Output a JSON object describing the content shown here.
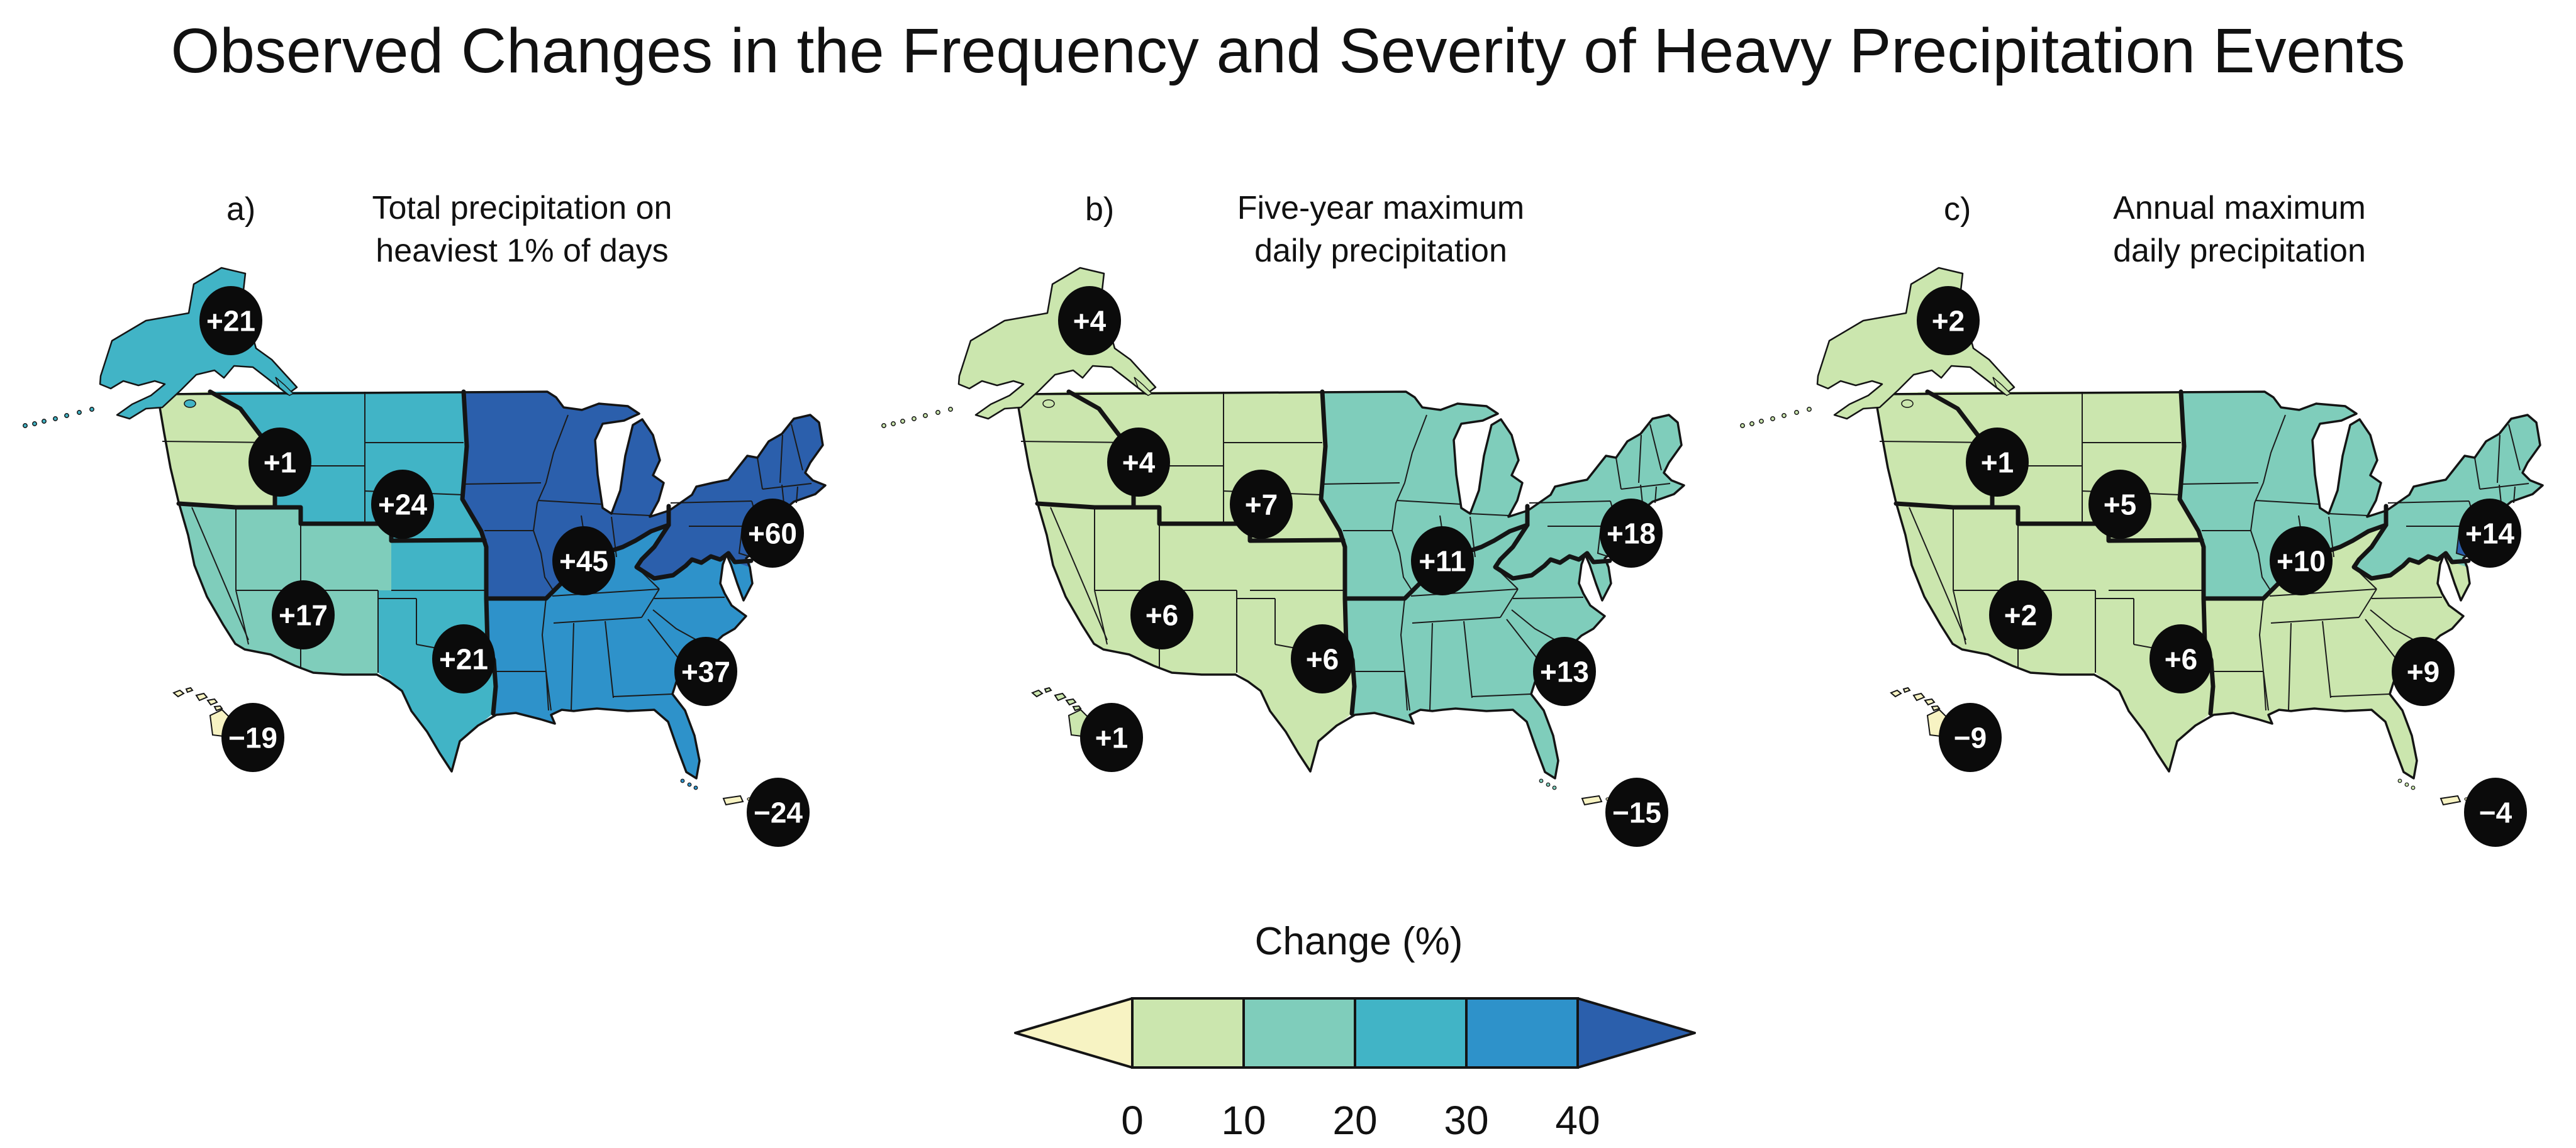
{
  "figure_title": "Observed Changes in the Frequency and Severity of Heavy Precipitation Events",
  "panels": [
    {
      "tag": "a)",
      "title_lines": [
        "Total precipitation on",
        "heaviest 1% of days"
      ],
      "regions": {
        "alaska": {
          "value": "+21",
          "color": "#41B4C6"
        },
        "northwest": {
          "value": "+1",
          "color": "#CBE6AE"
        },
        "northern_great_plains": {
          "value": "+24",
          "color": "#41B4C6"
        },
        "southwest": {
          "value": "+17",
          "color": "#7FCDBB"
        },
        "southern_great_plains": {
          "value": "+21",
          "color": "#41B4C6"
        },
        "midwest": {
          "value": "+45",
          "color": "#2B5FAC"
        },
        "southeast": {
          "value": "+37",
          "color": "#2E92CA"
        },
        "northeast": {
          "value": "+60",
          "color": "#2B5FAC"
        },
        "hawaii": {
          "value": "−19",
          "color": "#F7F3C3"
        },
        "caribbean": {
          "value": "−24",
          "color": "#F7F3C3"
        }
      }
    },
    {
      "tag": "b)",
      "title_lines": [
        "Five-year maximum",
        "daily precipitation"
      ],
      "regions": {
        "alaska": {
          "value": "+4",
          "color": "#CBE6AE"
        },
        "northwest": {
          "value": "+4",
          "color": "#CBE6AE"
        },
        "northern_great_plains": {
          "value": "+7",
          "color": "#CBE6AE"
        },
        "southwest": {
          "value": "+6",
          "color": "#CBE6AE"
        },
        "southern_great_plains": {
          "value": "+6",
          "color": "#CBE6AE"
        },
        "midwest": {
          "value": "+11",
          "color": "#7FCDBB"
        },
        "southeast": {
          "value": "+13",
          "color": "#7FCDBB"
        },
        "northeast": {
          "value": "+18",
          "color": "#7FCDBB"
        },
        "hawaii": {
          "value": "+1",
          "color": "#CBE6AE"
        },
        "caribbean": {
          "value": "−15",
          "color": "#F7F3C3"
        }
      }
    },
    {
      "tag": "c)",
      "title_lines": [
        "Annual maximum",
        "daily precipitation"
      ],
      "delaware_color": "#2B5FAC",
      "regions": {
        "alaska": {
          "value": "+2",
          "color": "#CBE6AE"
        },
        "northwest": {
          "value": "+1",
          "color": "#CBE6AE"
        },
        "northern_great_plains": {
          "value": "+5",
          "color": "#CBE6AE"
        },
        "southwest": {
          "value": "+2",
          "color": "#CBE6AE"
        },
        "southern_great_plains": {
          "value": "+6",
          "color": "#CBE6AE"
        },
        "midwest": {
          "value": "+10",
          "color": "#7FCDBB"
        },
        "southeast": {
          "value": "+9",
          "color": "#CBE6AE"
        },
        "northeast": {
          "value": "+14",
          "color": "#7FCDBB"
        },
        "hawaii": {
          "value": "−9",
          "color": "#F7F3C3"
        },
        "caribbean": {
          "value": "−4",
          "color": "#F7F3C3"
        }
      }
    }
  ],
  "legend": {
    "title": "Change (%)",
    "tick_labels": [
      "0",
      "10",
      "20",
      "30",
      "40"
    ],
    "arrow_left_color": "#F7F3C3",
    "segment_colors": [
      "#CBE6AE",
      "#7FCDBB",
      "#41B4C6",
      "#2E92CA"
    ],
    "arrow_right_color": "#2B5FAC"
  },
  "chart_data": {
    "type": "choropleth",
    "title": "Observed Changes in the Frequency and Severity of Heavy Precipitation Events",
    "unit": "percent change",
    "region_names": [
      "Alaska",
      "Northwest",
      "Northern Great Plains",
      "Southwest",
      "Southern Great Plains",
      "Midwest",
      "Southeast",
      "Northeast",
      "Hawaii",
      "Caribbean"
    ],
    "series": [
      {
        "name": "a) Total precipitation on heaviest 1% of days",
        "values": [
          21,
          1,
          24,
          17,
          21,
          45,
          37,
          60,
          -19,
          -24
        ]
      },
      {
        "name": "b) Five-year maximum daily precipitation",
        "values": [
          4,
          4,
          7,
          6,
          6,
          11,
          13,
          18,
          1,
          -15
        ]
      },
      {
        "name": "c) Annual maximum daily precipitation",
        "values": [
          2,
          1,
          5,
          2,
          6,
          10,
          9,
          14,
          -9,
          -4
        ]
      }
    ],
    "legend": {
      "title": "Change (%)",
      "bin_edges": [
        0,
        10,
        20,
        30,
        40
      ],
      "bins": [
        "below 0",
        "0-10",
        "10-20",
        "20-30",
        "30-40",
        "above 40"
      ],
      "bin_colors": [
        "#F7F3C3",
        "#CBE6AE",
        "#7FCDBB",
        "#41B4C6",
        "#2E92CA",
        "#2B5FAC"
      ],
      "position": "bottom center"
    }
  }
}
